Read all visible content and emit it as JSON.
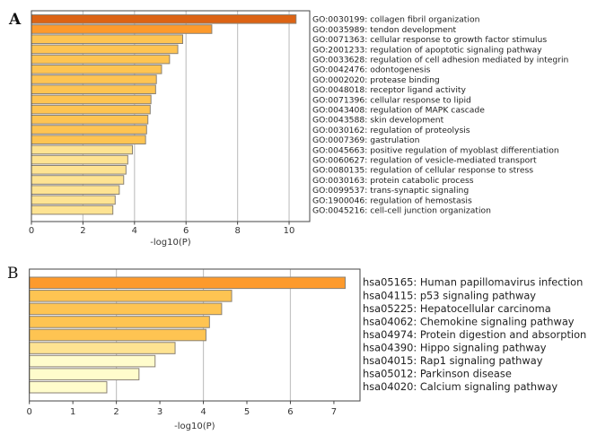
{
  "chart_data": [
    {
      "panel": "A",
      "type": "bar",
      "orientation": "horizontal",
      "title": "",
      "xlabel": "-log10(P)",
      "ylabel": "",
      "xlim": [
        0,
        10.8
      ],
      "xticks": [
        0,
        2,
        4,
        6,
        8,
        10
      ],
      "grid": "vertical",
      "categories": [
        "GO:0030199: collagen fibril organization",
        "GO:0035989: tendon development",
        "GO:0071363: cellular response to growth factor stimulus",
        "GO:2001233: regulation of apoptotic signaling pathway",
        "GO:0033628: regulation of cell adhesion mediated by integrin",
        "GO:0042476: odontogenesis",
        "GO:0002020: protease binding",
        "GO:0048018: receptor ligand activity",
        "GO:0071396: cellular response to lipid",
        "GO:0043408: regulation of MAPK cascade",
        "GO:0043588: skin development",
        "GO:0030162: regulation of proteolysis",
        "GO:0007369: gastrulation",
        "GO:0045663: positive regulation of myoblast differentiation",
        "GO:0060627: regulation of vesicle-mediated transport",
        "GO:0080135: regulation of cellular response to stress",
        "GO:0030163: protein catabolic process",
        "GO:0099537: trans-synaptic signaling",
        "GO:1900046: regulation of hemostasis",
        "GO:0045216: cell-cell junction organization"
      ],
      "values": [
        10.27,
        7.0,
        5.87,
        5.68,
        5.36,
        5.05,
        4.85,
        4.82,
        4.64,
        4.61,
        4.52,
        4.47,
        4.43,
        3.92,
        3.74,
        3.67,
        3.58,
        3.41,
        3.25,
        3.16
      ],
      "colors": [
        "#dc6314",
        "#fd9a2c",
        "#fec452",
        "#fec452",
        "#fec452",
        "#fec452",
        "#fec452",
        "#fec452",
        "#fec452",
        "#fec452",
        "#fec452",
        "#fec452",
        "#fec452",
        "#fee392",
        "#fee392",
        "#fee392",
        "#fee392",
        "#fee392",
        "#fee392",
        "#fee392"
      ],
      "legend": "none"
    },
    {
      "panel": "B",
      "type": "bar",
      "orientation": "horizontal",
      "title": "",
      "xlabel": "-log10(P)",
      "ylabel": "",
      "xlim": [
        0,
        7.6
      ],
      "xticks": [
        0,
        1,
        2,
        3,
        4,
        5,
        6,
        7
      ],
      "grid": "vertical",
      "gridlines_at": [
        2,
        4,
        6
      ],
      "categories": [
        "hsa05165: Human papillomavirus infection",
        "hsa04115: p53 signaling pathway",
        "hsa05225: Hepatocellular carcinoma",
        "hsa04062: Chemokine signaling pathway",
        "hsa04974: Protein digestion and absorption",
        "hsa04390: Hippo signaling pathway",
        "hsa04015: Rap1 signaling pathway",
        "hsa05012: Parkinson disease",
        "hsa04020: Calcium signaling pathway"
      ],
      "values": [
        7.26,
        4.65,
        4.42,
        4.14,
        4.06,
        3.35,
        2.89,
        2.52,
        1.78
      ],
      "colors": [
        "#fd9a2c",
        "#fec452",
        "#fec452",
        "#fec452",
        "#fec452",
        "#fee392",
        "#fffccc",
        "#fffccc",
        "#fffccc"
      ],
      "legend": "none"
    }
  ],
  "figure": {
    "panel_letters": [
      "A",
      "B"
    ],
    "bar_edge_color": "#8a8275",
    "grid_color": "#c4c4c4",
    "spine_color": "#444444"
  }
}
